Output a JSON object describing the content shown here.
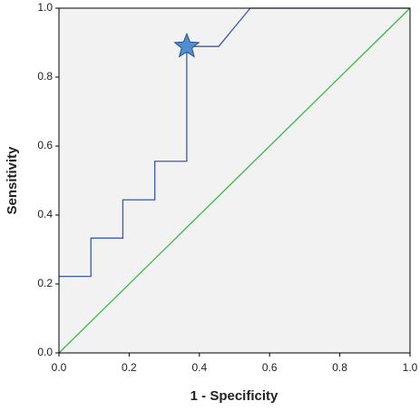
{
  "chart_data": {
    "type": "line",
    "xlabel": "1 - Specificity",
    "ylabel": "Sensitivity",
    "xlim": [
      0,
      1
    ],
    "ylim": [
      0,
      1
    ],
    "xticks": [
      {
        "value": 0,
        "label": "0.0"
      },
      0.2,
      0.4,
      0.6,
      0.8,
      {
        "value": 1,
        "label": "1.0"
      }
    ],
    "yticks": [
      {
        "value": 0,
        "label": "0.0"
      },
      0.2,
      0.4,
      0.6,
      0.8,
      {
        "value": 1,
        "label": "1.0"
      }
    ],
    "series": [
      {
        "color": "#3a5ba8",
        "x": [
          0,
          0.091,
          0.091,
          0.182,
          0.182,
          0.273,
          0.273,
          0.364,
          0.364,
          0.455,
          0.545,
          1
        ],
        "values": [
          0.222,
          0.222,
          0.333,
          0.333,
          0.444,
          0.444,
          0.556,
          0.556,
          0.889,
          0.889,
          1,
          1
        ]
      },
      {
        "color": "#3cb84a",
        "x": [
          0,
          1
        ],
        "values": [
          0,
          1
        ]
      }
    ],
    "highlight": {
      "x": 0.364,
      "y": 0.889,
      "color": "#4f8fd0"
    }
  }
}
